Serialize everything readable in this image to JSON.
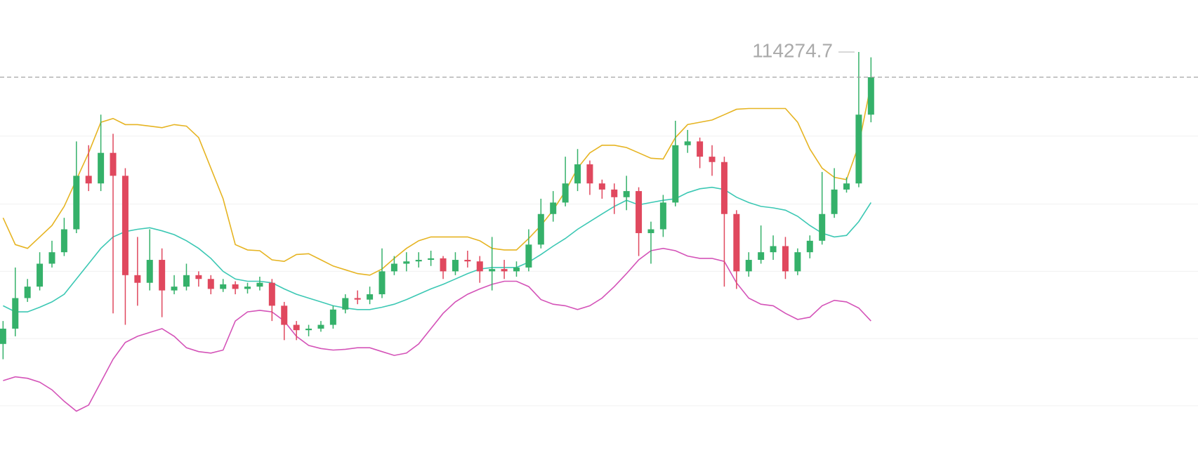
{
  "chart_data": {
    "type": "candlestick",
    "ylim": [
      108845,
      114955
    ],
    "grid_levels": [
      113175,
      112285,
      111405,
      110525,
      109645
    ],
    "up_color": "#35b16a",
    "down_color": "#e0485e",
    "open": [
      110455,
      110655,
      111055,
      111205,
      111505,
      111655,
      111955,
      112655,
      112555,
      112955,
      112655,
      111355,
      111255,
      111555,
      111155,
      111205,
      111355,
      111305,
      111175,
      111235,
      111175,
      111205,
      111255,
      110955,
      110705,
      110635,
      110655,
      110705,
      110905,
      111055,
      111035,
      111105,
      111405,
      111505,
      111535,
      111555,
      111575,
      111405,
      111555,
      111535,
      111405,
      111435,
      111405,
      111455,
      111755,
      112155,
      112305,
      112555,
      112805,
      112555,
      112475,
      112375,
      112455,
      111905,
      111955,
      112305,
      113055,
      113105,
      112905,
      112835,
      112155,
      111405,
      111555,
      111655,
      111735,
      111405,
      111655,
      111805,
      112155,
      112475,
      112555,
      113455
    ],
    "high": [
      110755,
      111455,
      111305,
      111655,
      111805,
      112105,
      113105,
      113055,
      113455,
      113205,
      112755,
      111855,
      111955,
      111705,
      111355,
      111505,
      111405,
      111355,
      111305,
      111275,
      111255,
      111335,
      111305,
      111005,
      110755,
      110705,
      110755,
      110955,
      111105,
      111155,
      111205,
      111705,
      111605,
      111655,
      111655,
      111675,
      111605,
      111655,
      111675,
      111605,
      111855,
      111555,
      111535,
      111955,
      112355,
      112455,
      112905,
      113005,
      112855,
      112605,
      112555,
      112655,
      112505,
      112055,
      112405,
      113375,
      113255,
      113155,
      113055,
      112905,
      112205,
      111655,
      112005,
      111875,
      111855,
      111705,
      111875,
      112705,
      112755,
      112635,
      114274.7,
      114205
    ],
    "low": [
      110255,
      110555,
      111005,
      111155,
      111455,
      111605,
      111905,
      112455,
      112455,
      110855,
      110705,
      110955,
      111155,
      110805,
      111105,
      111155,
      111205,
      111105,
      111135,
      111105,
      111115,
      111155,
      110755,
      110505,
      110505,
      110555,
      110615,
      110655,
      110855,
      110975,
      110975,
      111055,
      111355,
      111405,
      111455,
      111475,
      111305,
      111355,
      111455,
      111255,
      111155,
      111305,
      111335,
      111405,
      111705,
      112055,
      112255,
      112455,
      112405,
      112355,
      112155,
      112205,
      111605,
      111505,
      111855,
      112255,
      112955,
      112755,
      112655,
      111205,
      111175,
      111335,
      111505,
      111555,
      111305,
      111355,
      111575,
      111755,
      112105,
      112435,
      112505,
      113355
    ],
    "close": [
      110655,
      111055,
      111205,
      111505,
      111655,
      111955,
      112655,
      112555,
      112955,
      112655,
      111355,
      111255,
      111555,
      111155,
      111205,
      111355,
      111305,
      111175,
      111235,
      111175,
      111205,
      111255,
      110955,
      110705,
      110635,
      110655,
      110705,
      110905,
      111055,
      111035,
      111105,
      111405,
      111505,
      111535,
      111555,
      111575,
      111405,
      111555,
      111535,
      111405,
      111435,
      111405,
      111455,
      111755,
      112155,
      112305,
      112555,
      112805,
      112555,
      112475,
      112375,
      112455,
      111905,
      111955,
      112305,
      113055,
      113105,
      112905,
      112835,
      112155,
      111405,
      111555,
      111655,
      111735,
      111405,
      111655,
      111805,
      112155,
      112475,
      112555,
      113455,
      113945
    ],
    "bands": [
      {
        "color": "#e6b422",
        "values": [
          112105,
          111755,
          111705,
          111855,
          112005,
          112255,
          112605,
          112955,
          113355,
          113405,
          113325,
          113325,
          113305,
          113285,
          113325,
          113305,
          113155,
          112755,
          112355,
          111755,
          111685,
          111675,
          111555,
          111535,
          111625,
          111635,
          111555,
          111475,
          111425,
          111375,
          111355,
          111435,
          111575,
          111705,
          111805,
          111855,
          111855,
          111855,
          111855,
          111805,
          111705,
          111685,
          111685,
          111835,
          112005,
          112205,
          112455,
          112755,
          112955,
          113055,
          113055,
          113025,
          112955,
          112885,
          112875,
          113155,
          113325,
          113355,
          113385,
          113455,
          113525,
          113535,
          113535,
          113535,
          113535,
          113355,
          113005,
          112755,
          112635,
          112605,
          113055,
          113855
        ]
      },
      {
        "color": "#3cc8b4",
        "values": [
          110955,
          110875,
          110875,
          110935,
          111005,
          111105,
          111305,
          111505,
          111705,
          111855,
          111925,
          111955,
          111975,
          111935,
          111885,
          111805,
          111705,
          111575,
          111405,
          111305,
          111275,
          111275,
          111255,
          111175,
          111105,
          111055,
          111005,
          110955,
          110925,
          110905,
          110905,
          110935,
          110975,
          111035,
          111105,
          111175,
          111235,
          111305,
          111375,
          111435,
          111455,
          111455,
          111455,
          111525,
          111625,
          111735,
          111835,
          111955,
          112055,
          112155,
          112255,
          112335,
          112275,
          112305,
          112335,
          112355,
          112435,
          112485,
          112505,
          112475,
          112375,
          112305,
          112255,
          112235,
          112205,
          112125,
          112005,
          111905,
          111855,
          111875,
          112055,
          112305
        ]
      },
      {
        "color": "#d453b8",
        "values": [
          109975,
          110025,
          110005,
          109955,
          109855,
          109705,
          109575,
          109655,
          109955,
          110255,
          110475,
          110555,
          110605,
          110655,
          110555,
          110405,
          110355,
          110335,
          110375,
          110755,
          110875,
          110895,
          110875,
          110755,
          110555,
          110435,
          110395,
          110375,
          110385,
          110405,
          110405,
          110355,
          110305,
          110335,
          110455,
          110655,
          110855,
          111005,
          111105,
          111175,
          111235,
          111275,
          111275,
          111205,
          111035,
          110975,
          110955,
          110905,
          110955,
          111055,
          111205,
          111375,
          111555,
          111675,
          111705,
          111675,
          111605,
          111575,
          111575,
          111535,
          111255,
          111055,
          110975,
          110955,
          110855,
          110775,
          110805,
          110955,
          111025,
          111005,
          110925,
          110755
        ]
      }
    ]
  }
}
